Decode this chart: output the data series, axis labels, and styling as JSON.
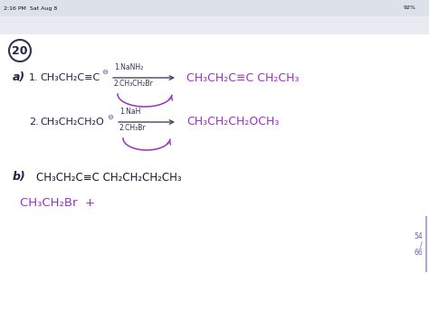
{
  "bg_color": "#ffffff",
  "toolbar_bg": "#eaecf0",
  "status_text": "2:16 PM  Sat Aug 8",
  "battery_text": "92%",
  "number_circle": "20",
  "purple": "#9B2FC8",
  "dark_ink": "#222244",
  "black_ink": "#1a1a2e",
  "arrow_color": "#444466",
  "reagent_color": "#333355",
  "page_num_color": "#6666bb",
  "a_label": "a)",
  "b_label": "b)",
  "item1_num": "1.",
  "item2_num": "2.",
  "item1_reactant": "CH₃CH₂C≡C",
  "item1_reagent1": "1.NaNH₂",
  "item1_reagent2": "2.CH₃CH₂Br",
  "item1_product": "CH₃CH₂C≡C CH₂CH₃",
  "item2_reactant": "CH₃CH₂CH₂O",
  "item2_reagent1": "1.NaH",
  "item2_reagent2": "2.CH₃Br",
  "item2_product": "CH₃CH₂CH₂OCH₃",
  "b_compound": "CH₃CH₂C≡C CH₂CH₂CH₂CH₃",
  "b_answer": "CH₃CH₂Br  +",
  "page_54": "54",
  "page_slash": "/",
  "page_66": "66"
}
